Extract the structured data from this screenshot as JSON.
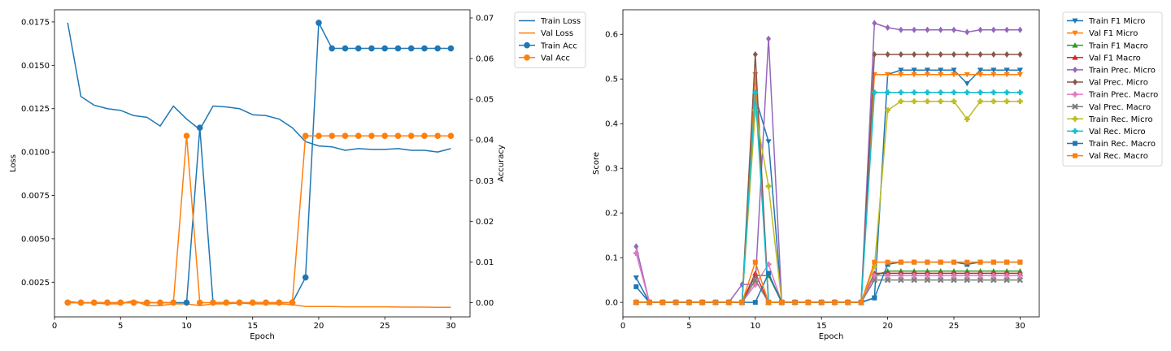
{
  "chart_data": [
    {
      "type": "line",
      "xlabel": "Epoch",
      "ylabel": "Loss",
      "y2label": "Accuracy",
      "xlim": [
        0,
        31.45
      ],
      "ylim": [
        0.0005,
        0.0182
      ],
      "y2lim": [
        -0.0035,
        0.072
      ],
      "xticks": [
        0,
        5,
        10,
        15,
        20,
        25,
        30
      ],
      "yticks": [
        0.0025,
        0.005,
        0.0075,
        0.01,
        0.0125,
        0.015,
        0.0175
      ],
      "ytick_labels": [
        "0.0025",
        "0.0050",
        "0.0075",
        "0.0100",
        "0.0125",
        "0.0150",
        "0.0175"
      ],
      "y2ticks": [
        0.0,
        0.01,
        0.02,
        0.03,
        0.04,
        0.05,
        0.06,
        0.07
      ],
      "y2tick_labels": [
        "0.00",
        "0.01",
        "0.02",
        "0.03",
        "0.04",
        "0.05",
        "0.06",
        "0.07"
      ],
      "grid": false,
      "legend_position": "outside-right-top",
      "x": [
        1,
        2,
        3,
        4,
        5,
        6,
        7,
        8,
        9,
        10,
        11,
        12,
        13,
        14,
        15,
        16,
        17,
        18,
        19,
        20,
        21,
        22,
        23,
        24,
        25,
        26,
        27,
        28,
        29,
        30
      ],
      "series": [
        {
          "name": "Train Loss",
          "axis": "left",
          "color": "#1f77b4",
          "marker": "none",
          "values": [
            0.01745,
            0.0132,
            0.0127,
            0.0125,
            0.0124,
            0.0121,
            0.012,
            0.0115,
            0.01265,
            0.0119,
            0.0113,
            0.01265,
            0.0126,
            0.0125,
            0.01215,
            0.0121,
            0.0119,
            0.0114,
            0.0106,
            0.01035,
            0.0103,
            0.0101,
            0.0102,
            0.01015,
            0.01015,
            0.0102,
            0.0101,
            0.0101,
            0.01,
            0.0102
          ]
        },
        {
          "name": "Val Loss",
          "axis": "left",
          "color": "#ff7f0e",
          "marker": "none",
          "values": [
            0.0014,
            0.0013,
            0.0013,
            0.00125,
            0.00125,
            0.00145,
            0.00115,
            0.00115,
            0.00125,
            0.00125,
            0.00115,
            0.00125,
            0.00125,
            0.0013,
            0.00125,
            0.00125,
            0.00125,
            0.0012,
            0.0011,
            0.0011,
            0.0011,
            0.00108,
            0.00108,
            0.00108,
            0.00108,
            0.00107,
            0.00106,
            0.00106,
            0.00105,
            0.00105
          ]
        },
        {
          "name": "Train Acc",
          "axis": "right",
          "color": "#1f77b4",
          "marker": "circle",
          "values": [
            0,
            0,
            0,
            0,
            0,
            0,
            0,
            0,
            0,
            0,
            0.043,
            0,
            0,
            0,
            0,
            0,
            0,
            0,
            0.0062,
            0.0688,
            0.0625,
            0.0625,
            0.0625,
            0.0625,
            0.0625,
            0.0625,
            0.0625,
            0.0625,
            0.0625,
            0.0625
          ]
        },
        {
          "name": "Val Acc",
          "axis": "right",
          "color": "#ff7f0e",
          "marker": "circle",
          "values": [
            0,
            0,
            0,
            0,
            0,
            0,
            0,
            0,
            0,
            0.041,
            0,
            0,
            0,
            0,
            0,
            0,
            0,
            0,
            0.041,
            0.041,
            0.041,
            0.041,
            0.041,
            0.041,
            0.041,
            0.041,
            0.041,
            0.041,
            0.041,
            0.041
          ]
        }
      ]
    },
    {
      "type": "line",
      "xlabel": "Epoch",
      "ylabel": "Score",
      "xlim": [
        0,
        31.45
      ],
      "ylim": [
        -0.0325,
        0.655
      ],
      "xticks": [
        0,
        5,
        10,
        15,
        20,
        25,
        30
      ],
      "yticks": [
        0.0,
        0.1,
        0.2,
        0.3,
        0.4,
        0.5,
        0.6
      ],
      "ytick_labels": [
        "0.0",
        "0.1",
        "0.2",
        "0.3",
        "0.4",
        "0.5",
        "0.6"
      ],
      "grid": false,
      "legend_position": "outside-right-top",
      "x": [
        1,
        2,
        3,
        4,
        5,
        6,
        7,
        8,
        9,
        10,
        11,
        12,
        13,
        14,
        15,
        16,
        17,
        18,
        19,
        20,
        21,
        22,
        23,
        24,
        25,
        26,
        27,
        28,
        29,
        30
      ],
      "series": [
        {
          "name": "Train F1 Micro",
          "color": "#1f77b4",
          "marker": "triangle-down",
          "values": [
            0.055,
            0,
            0,
            0,
            0,
            0,
            0,
            0,
            0,
            0.46,
            0.36,
            0,
            0,
            0,
            0,
            0,
            0,
            0,
            0.01,
            0.51,
            0.52,
            0.52,
            0.52,
            0.52,
            0.52,
            0.49,
            0.52,
            0.52,
            0.52,
            0.52
          ]
        },
        {
          "name": "Val F1 Micro",
          "color": "#ff7f0e",
          "marker": "triangle-down",
          "values": [
            0,
            0,
            0,
            0,
            0,
            0,
            0,
            0,
            0,
            0.51,
            0,
            0,
            0,
            0,
            0,
            0,
            0,
            0,
            0.51,
            0.51,
            0.51,
            0.51,
            0.51,
            0.51,
            0.51,
            0.51,
            0.51,
            0.51,
            0.51,
            0.51
          ]
        },
        {
          "name": "Train F1 Macro",
          "color": "#2ca02c",
          "marker": "triangle-up",
          "values": [
            0,
            0,
            0,
            0,
            0,
            0,
            0,
            0,
            0,
            0.06,
            0.06,
            0,
            0,
            0,
            0,
            0,
            0,
            0,
            0.06,
            0.07,
            0.07,
            0.07,
            0.07,
            0.07,
            0.07,
            0.07,
            0.07,
            0.07,
            0.07,
            0.07
          ]
        },
        {
          "name": "Val F1 Macro",
          "color": "#d62728",
          "marker": "triangle-up",
          "values": [
            0,
            0,
            0,
            0,
            0,
            0,
            0,
            0,
            0,
            0.065,
            0,
            0,
            0,
            0,
            0,
            0,
            0,
            0,
            0.065,
            0.065,
            0.065,
            0.065,
            0.065,
            0.065,
            0.065,
            0.065,
            0.065,
            0.065,
            0.065,
            0.065
          ]
        },
        {
          "name": "Train Prec. Micro",
          "color": "#9467bd",
          "marker": "diamond",
          "values": [
            0.125,
            0,
            0,
            0,
            0,
            0,
            0,
            0,
            0.04,
            0.04,
            0.59,
            0,
            0,
            0,
            0,
            0,
            0,
            0,
            0.625,
            0.615,
            0.61,
            0.61,
            0.61,
            0.61,
            0.61,
            0.605,
            0.61,
            0.61,
            0.61,
            0.61
          ]
        },
        {
          "name": "Val Prec. Micro",
          "color": "#8c564b",
          "marker": "diamond",
          "values": [
            0,
            0,
            0,
            0,
            0,
            0,
            0,
            0,
            0,
            0.555,
            0,
            0,
            0,
            0,
            0,
            0,
            0,
            0,
            0.555,
            0.555,
            0.555,
            0.555,
            0.555,
            0.555,
            0.555,
            0.555,
            0.555,
            0.555,
            0.555,
            0.555
          ]
        },
        {
          "name": "Train Prec. Macro",
          "color": "#e377c2",
          "marker": "plus",
          "values": [
            0.11,
            0,
            0,
            0,
            0,
            0,
            0,
            0,
            0,
            0.04,
            0.085,
            0,
            0,
            0,
            0,
            0,
            0,
            0,
            0.06,
            0.06,
            0.06,
            0.06,
            0.06,
            0.06,
            0.06,
            0.06,
            0.06,
            0.06,
            0.06,
            0.06
          ]
        },
        {
          "name": "Val Prec. Macro",
          "color": "#7f7f7f",
          "marker": "x",
          "values": [
            0,
            0,
            0,
            0,
            0,
            0,
            0,
            0,
            0,
            0.05,
            0,
            0,
            0,
            0,
            0,
            0,
            0,
            0,
            0.05,
            0.05,
            0.05,
            0.05,
            0.05,
            0.05,
            0.05,
            0.05,
            0.05,
            0.05,
            0.05,
            0.05
          ]
        },
        {
          "name": "Train Rec. Micro",
          "color": "#bcbd22",
          "marker": "plus",
          "values": [
            0,
            0,
            0,
            0,
            0,
            0,
            0,
            0,
            0,
            0.43,
            0.26,
            0,
            0,
            0,
            0,
            0,
            0,
            0,
            0.08,
            0.43,
            0.45,
            0.45,
            0.45,
            0.45,
            0.45,
            0.41,
            0.45,
            0.45,
            0.45,
            0.45
          ]
        },
        {
          "name": "Val Rec. Micro",
          "color": "#17becf",
          "marker": "plus",
          "values": [
            0,
            0,
            0,
            0,
            0,
            0,
            0,
            0,
            0,
            0.47,
            0,
            0,
            0,
            0,
            0,
            0,
            0,
            0,
            0.47,
            0.47,
            0.47,
            0.47,
            0.47,
            0.47,
            0.47,
            0.47,
            0.47,
            0.47,
            0.47,
            0.47
          ]
        },
        {
          "name": "Train Rec. Macro",
          "color": "#1f77b4",
          "marker": "square",
          "values": [
            0.035,
            0,
            0,
            0,
            0,
            0,
            0,
            0,
            0,
            0,
            0.065,
            0,
            0,
            0,
            0,
            0,
            0,
            0,
            0.01,
            0.085,
            0.09,
            0.09,
            0.09,
            0.09,
            0.09,
            0.085,
            0.09,
            0.09,
            0.09,
            0.09
          ]
        },
        {
          "name": "Val Rec. Macro",
          "color": "#ff7f0e",
          "marker": "square",
          "values": [
            0,
            0,
            0,
            0,
            0,
            0,
            0,
            0,
            0,
            0.09,
            0,
            0,
            0,
            0,
            0,
            0,
            0,
            0,
            0.09,
            0.09,
            0.09,
            0.09,
            0.09,
            0.09,
            0.09,
            0.09,
            0.09,
            0.09,
            0.09,
            0.09
          ]
        }
      ]
    }
  ]
}
